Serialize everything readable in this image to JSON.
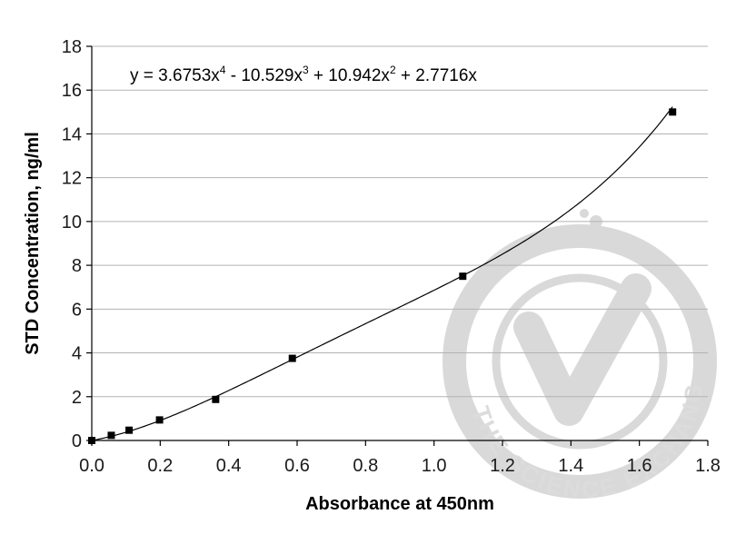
{
  "chart_data": {
    "type": "scatter",
    "xlabel": "Absorbance at 450nm",
    "ylabel": "STD Concentration, ng/ml",
    "xlim": [
      0.0,
      1.8
    ],
    "ylim": [
      0,
      18
    ],
    "x_ticks": [
      "0.0",
      "0.2",
      "0.4",
      "0.6",
      "0.8",
      "1.0",
      "1.2",
      "1.4",
      "1.6",
      "1.8"
    ],
    "y_ticks": [
      "0",
      "2",
      "4",
      "6",
      "8",
      "10",
      "12",
      "14",
      "16",
      "18"
    ],
    "grid": "horizontal",
    "series": [
      {
        "marker": "square",
        "x": [
          0.0,
          0.057,
          0.109,
          0.198,
          0.362,
          0.586,
          1.084,
          1.697
        ],
        "y": [
          0.0,
          0.234,
          0.469,
          0.938,
          1.875,
          3.75,
          7.5,
          15.0
        ]
      }
    ],
    "trendline": {
      "type": "polynomial",
      "order": 4,
      "coefficients": [
        3.6753,
        -10.529,
        10.942,
        2.7716,
        0
      ],
      "equation": {
        "prefix": "y = 3.6753x",
        "e1": "4",
        "t2": " - 10.529x",
        "e2": "3",
        "t3": " + 10.942x",
        "e3": "2",
        "t4": " + 2.7716x"
      }
    }
  },
  "watermark": {
    "text": "THE SCIENCE EXCHANGE NETWORK",
    "color": "#d9d9d9"
  }
}
